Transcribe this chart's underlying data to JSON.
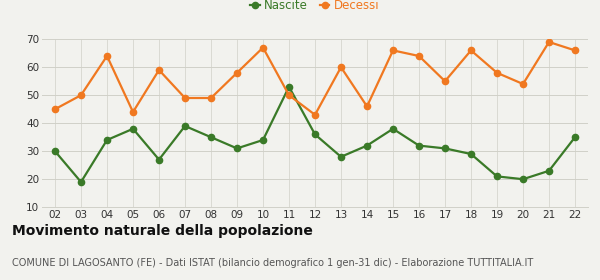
{
  "years": [
    "02",
    "03",
    "04",
    "05",
    "06",
    "07",
    "08",
    "09",
    "10",
    "11",
    "12",
    "13",
    "14",
    "15",
    "16",
    "17",
    "18",
    "19",
    "20",
    "21",
    "22"
  ],
  "nascite": [
    30,
    19,
    34,
    38,
    27,
    39,
    35,
    31,
    34,
    53,
    36,
    28,
    32,
    38,
    32,
    31,
    29,
    21,
    20,
    23,
    35
  ],
  "decessi": [
    45,
    50,
    64,
    44,
    59,
    49,
    49,
    58,
    67,
    50,
    43,
    60,
    46,
    66,
    64,
    55,
    66,
    58,
    54,
    69,
    66
  ],
  "nascite_color": "#3a7a28",
  "decessi_color": "#f07820",
  "bg_color": "#f2f2ee",
  "grid_color": "#d0d0c8",
  "ylim": [
    10,
    70
  ],
  "yticks": [
    10,
    20,
    30,
    40,
    50,
    60,
    70
  ],
  "title": "Movimento naturale della popolazione",
  "subtitle": "COMUNE DI LAGOSANTO (FE) - Dati ISTAT (bilancio demografico 1 gen-31 dic) - Elaborazione TUTTITALIA.IT",
  "legend_nascite": "Nascite",
  "legend_decessi": "Decessi",
  "title_fontsize": 10,
  "subtitle_fontsize": 7,
  "tick_fontsize": 7.5,
  "legend_fontsize": 8.5,
  "marker_size": 4.5,
  "line_width": 1.6
}
